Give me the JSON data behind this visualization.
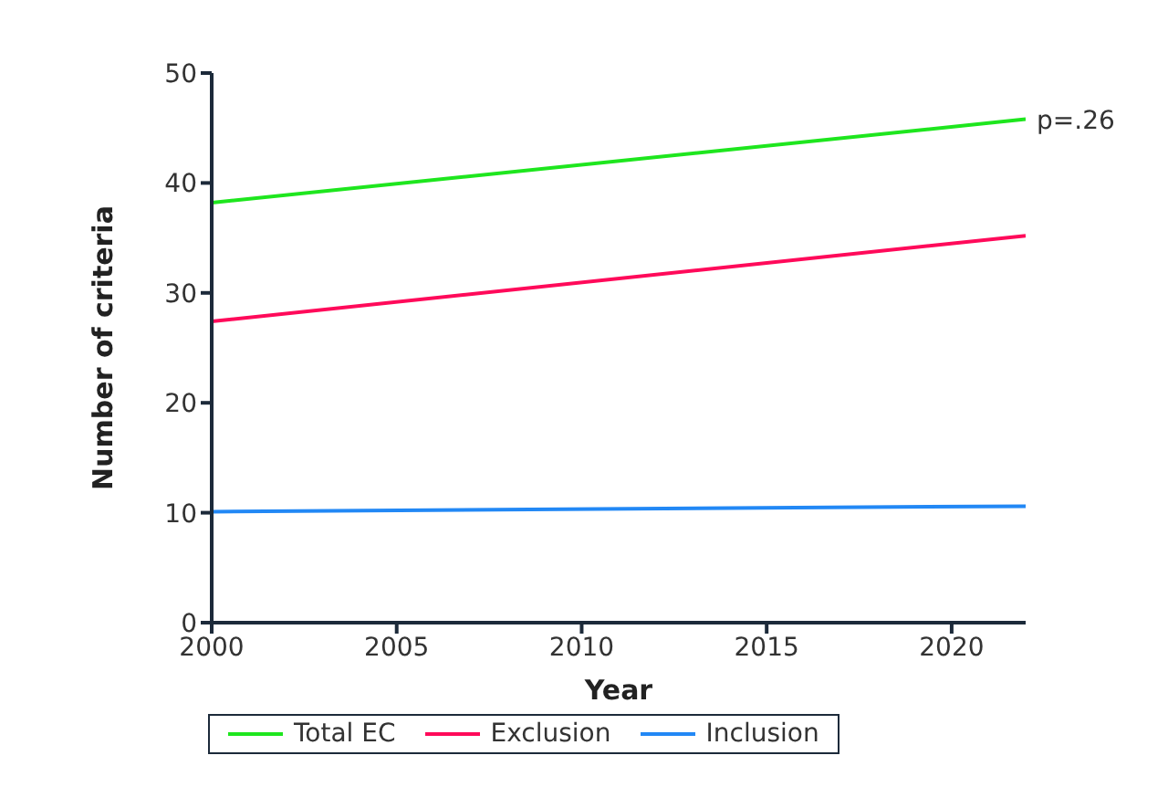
{
  "chart_data": {
    "type": "line",
    "xlabel": "Year",
    "ylabel": "Number of criteria",
    "x": [
      2000,
      2022
    ],
    "series": [
      {
        "name": "Total EC",
        "color": "#1ee61e",
        "values": [
          38.2,
          45.8
        ]
      },
      {
        "name": "Exclusion",
        "color": "#ff0a5a",
        "values": [
          27.4,
          35.2
        ]
      },
      {
        "name": "Inclusion",
        "color": "#2288f5",
        "values": [
          10.1,
          10.6
        ]
      }
    ],
    "xlim": [
      2000,
      2022
    ],
    "xticks": [
      2000,
      2005,
      2010,
      2015,
      2020
    ],
    "ylim": [
      0,
      50
    ],
    "yticks": [
      0,
      10,
      20,
      30,
      40,
      50
    ],
    "grid": false,
    "legend": "bottom",
    "marker": "none",
    "line_style": "solid",
    "annotations": [
      {
        "text": "p=.26",
        "x": 2022,
        "y": 45.8
      }
    ]
  }
}
